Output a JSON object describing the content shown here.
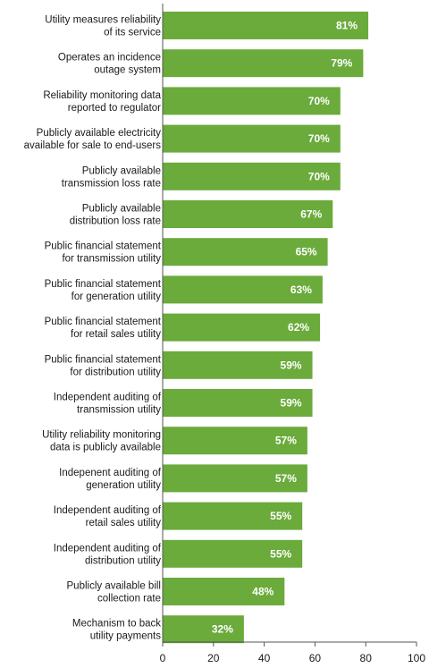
{
  "chart_data": {
    "type": "bar",
    "orientation": "horizontal",
    "categories": [
      "Utility measures reliability\nof its service",
      "Operates an incidence\noutage system",
      "Reliability monitoring data\nreported to regulator",
      "Publicly available electricity\navailable for sale to end-users",
      "Publicly available\ntransmission loss rate",
      "Publicly available\ndistribution loss rate",
      "Public financial statement\nfor transmission utility",
      "Public financial statement\nfor generation utility",
      "Public financial statement\nfor retail sales utility",
      "Public financial statement\nfor distribution utility",
      "Independent auditing of\ntransmission utility",
      "Utility reliability monitoring\ndata is publicly available",
      "Indepenent auditing of\ngeneration utility",
      "Independent auditing of\nretail sales utility",
      "Independent auditing of\ndistribution utility",
      "Publicly available bill\ncollection rate",
      "Mechanism to back\nutility payments"
    ],
    "values": [
      81,
      79,
      70,
      70,
      70,
      67,
      65,
      63,
      62,
      59,
      59,
      57,
      57,
      55,
      55,
      48,
      32
    ],
    "value_labels": [
      "81%",
      "79%",
      "70%",
      "70%",
      "70%",
      "67%",
      "65%",
      "63%",
      "62%",
      "59%",
      "59%",
      "57%",
      "57%",
      "55%",
      "55%",
      "48%",
      "32%"
    ],
    "xlim": [
      0,
      100
    ],
    "xticks": [
      0,
      20,
      40,
      60,
      80,
      100
    ],
    "grid": false,
    "bar_color": "#6aab3b",
    "value_label_color": "#ffffff"
  }
}
